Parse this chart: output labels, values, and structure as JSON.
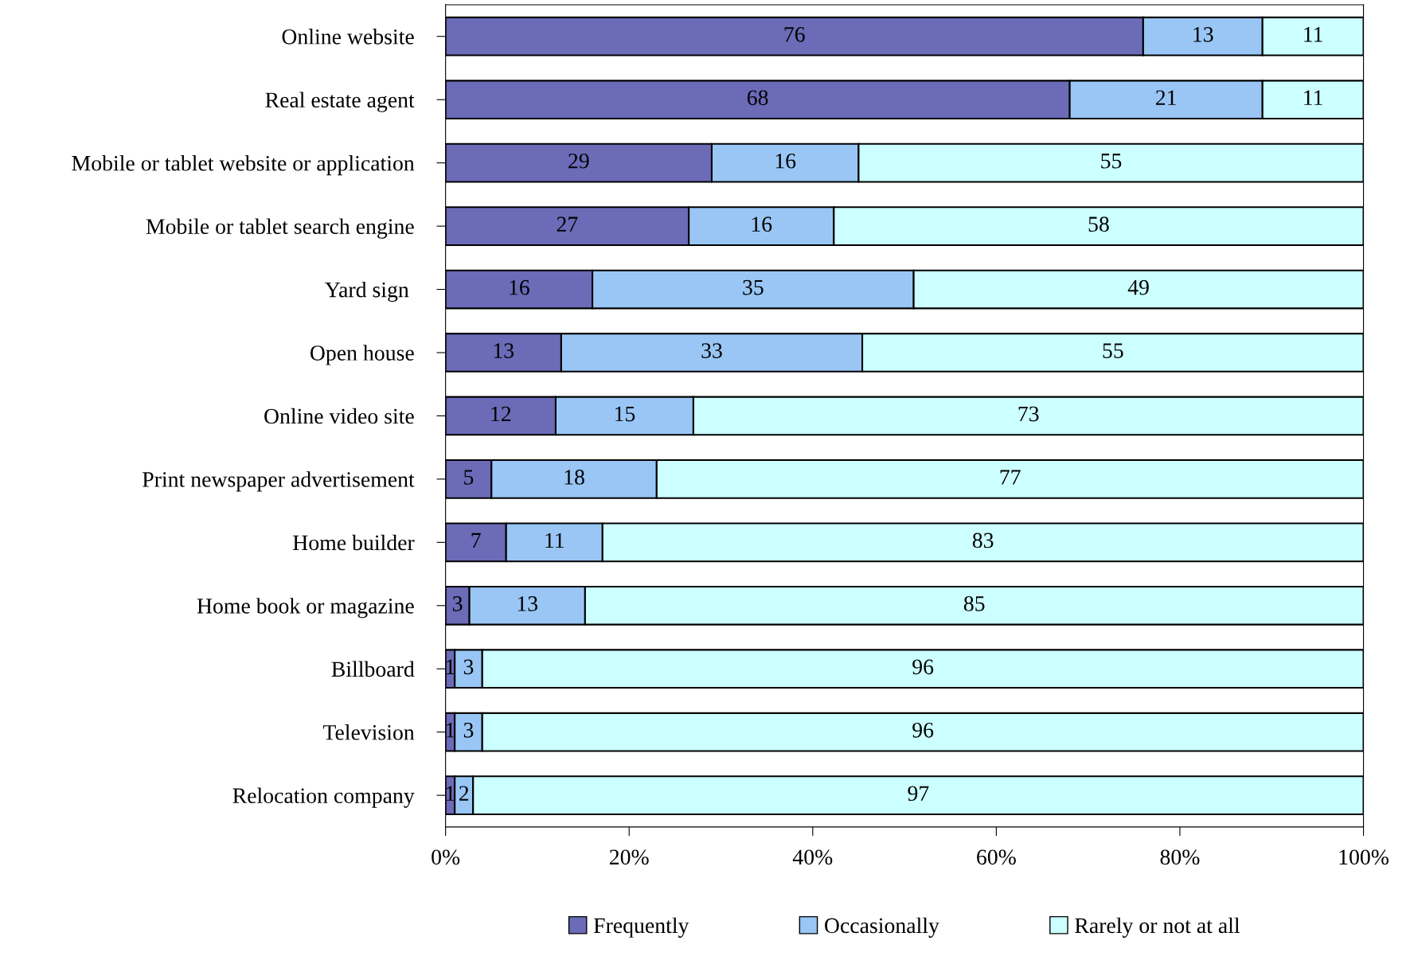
{
  "chart_data": {
    "type": "bar",
    "orientation": "horizontal",
    "stacked": true,
    "categories": [
      "Online website",
      "Real estate agent",
      "Mobile or tablet website or application",
      "Mobile or tablet search engine",
      "Yard sign ",
      "Open house",
      "Online video site",
      "Print newspaper advertisement",
      "Home builder",
      "Home book or magazine",
      "Billboard",
      "Television",
      "Relocation company"
    ],
    "series": [
      {
        "name": "Frequently",
        "color": "#6b6bb8",
        "values": [
          76,
          68,
          29,
          26.5,
          16,
          12.6,
          12,
          5,
          6.6,
          2.6,
          1,
          1,
          1
        ],
        "value_labels": [
          "76",
          "68",
          "29",
          "27",
          "16",
          "13",
          "12",
          "5",
          "7",
          "3",
          "1",
          "1",
          "1"
        ]
      },
      {
        "name": "Occasionally",
        "color": "#99c6f5",
        "values": [
          13,
          21,
          16,
          15.8,
          35,
          32.8,
          15,
          18,
          10.5,
          12.6,
          3,
          3,
          2
        ],
        "value_labels": [
          "13",
          "21",
          "16",
          "16",
          "35",
          "33",
          "15",
          "18",
          "11",
          "13",
          "3",
          "3",
          "2"
        ]
      },
      {
        "name": "Rarely or not at all",
        "color": "#ccffff",
        "values": [
          11,
          11,
          55,
          57.7,
          49,
          54.6,
          73,
          77,
          82.9,
          84.8,
          96,
          96,
          97
        ],
        "value_labels": [
          "11",
          "11",
          "55",
          "58",
          "49",
          "55",
          "73",
          "77",
          "83",
          "85",
          "96",
          "96",
          "97"
        ]
      }
    ],
    "xlim": [
      0,
      100
    ],
    "xticks": [
      {
        "value": 0,
        "label": "0%"
      },
      {
        "value": 20,
        "label": "20%"
      },
      {
        "value": 40,
        "label": "40%"
      },
      {
        "value": 60,
        "label": "60%"
      },
      {
        "value": 80,
        "label": "80%"
      },
      {
        "value": 100,
        "label": "100%"
      }
    ],
    "legend": "bottom",
    "grid": false
  }
}
